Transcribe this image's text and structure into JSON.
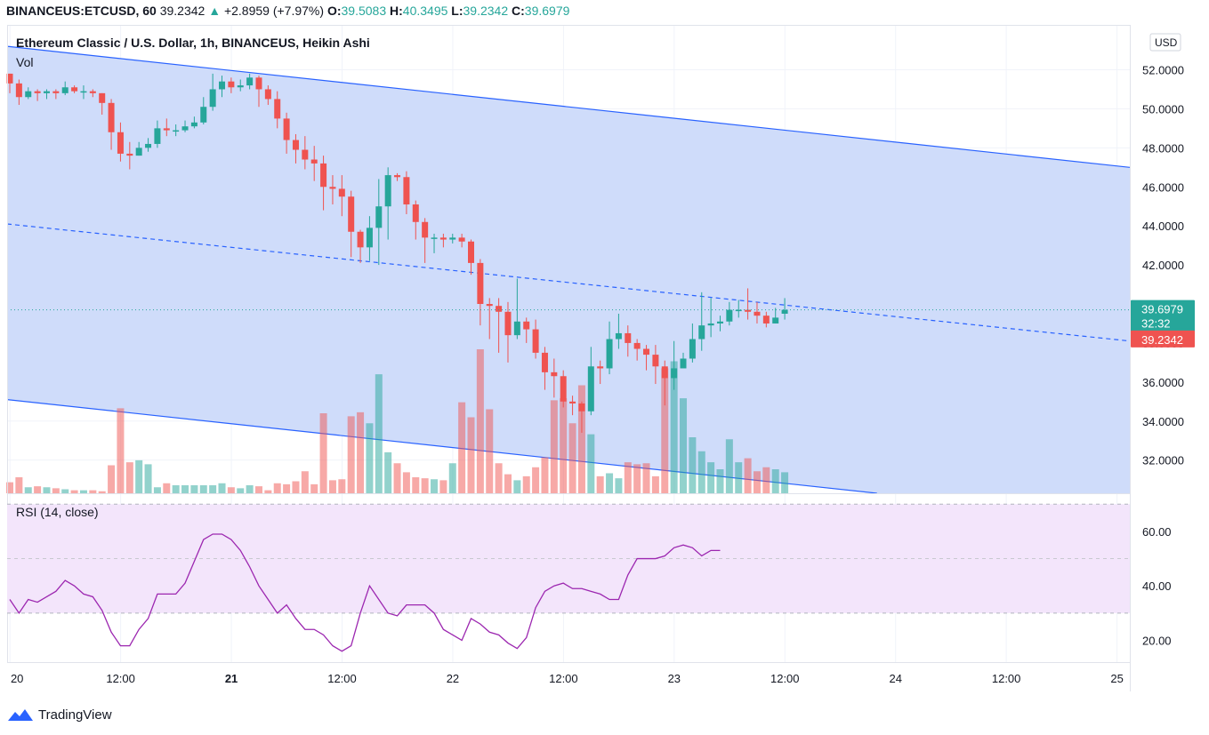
{
  "header": {
    "symbol": "BINANCEUS:ETCUSD, 60",
    "last": "39.2342",
    "change": "+2.8959 (+7.97%)",
    "o_label": "O:",
    "o": "39.5083",
    "h_label": "H:",
    "h": "40.3495",
    "l_label": "L:",
    "l": "39.2342",
    "c_label": "C:",
    "c": "39.6979"
  },
  "legend": {
    "title": "Ethereum Classic / U.S. Dollar, 1h, BINANCEUS, Heikin Ashi",
    "vol": "Vol",
    "rsi": "RSI (14, close)"
  },
  "brand": "TradingView",
  "colors": {
    "up": "#26a69a",
    "down": "#ef5350",
    "channel_fill": "#cfdcfa",
    "channel_line": "#2962ff",
    "rsi_line": "#9c27b0",
    "rsi_band": "#f3e5fb"
  },
  "chart_data": [
    {
      "type": "candlestick",
      "title": "Ethereum Classic / U.S. Dollar, 1h, BINANCEUS, Heikin Ashi",
      "currency": "USD",
      "ylim": [
        30.3,
        54.3
      ],
      "price_ticks": [
        "52.0000",
        "50.0000",
        "48.0000",
        "46.0000",
        "44.0000",
        "42.0000",
        "40.0000",
        "38.0000",
        "36.0000",
        "34.0000",
        "32.0000"
      ],
      "x_ticks": [
        {
          "i": 0,
          "label": "20",
          "bold": false
        },
        {
          "i": 12,
          "label": "12:00",
          "bold": false
        },
        {
          "i": 24,
          "label": "21",
          "bold": true
        },
        {
          "i": 36,
          "label": "12:00",
          "bold": false
        },
        {
          "i": 48,
          "label": "22",
          "bold": false
        },
        {
          "i": 60,
          "label": "12:00",
          "bold": false
        },
        {
          "i": 72,
          "label": "23",
          "bold": false
        },
        {
          "i": 84,
          "label": "12:00",
          "bold": false
        },
        {
          "i": 96,
          "label": "24",
          "bold": false
        },
        {
          "i": 108,
          "label": "12:00",
          "bold": false
        },
        {
          "i": 120,
          "label": "25",
          "bold": false
        }
      ],
      "current_price": {
        "value": "39.6979",
        "countdown": "32:32"
      },
      "low_label": "39.2342",
      "channel": {
        "upper": [
          [
            0,
            53.2
          ],
          [
            122,
            47.0
          ]
        ],
        "middle": [
          [
            0,
            44.1
          ],
          [
            122,
            38.1
          ]
        ],
        "lower": [
          [
            0,
            35.1
          ],
          [
            94,
            30.3
          ]
        ]
      },
      "candles": [
        [
          51.8,
          51.3,
          51.8,
          50.8
        ],
        [
          51.3,
          50.6,
          51.5,
          50.2
        ],
        [
          50.6,
          50.9,
          51.1,
          50.5
        ],
        [
          50.9,
          50.8,
          51.0,
          50.4
        ],
        [
          50.8,
          50.9,
          51.0,
          50.5
        ],
        [
          50.9,
          50.8,
          51.0,
          50.5
        ],
        [
          50.8,
          51.1,
          51.4,
          50.7
        ],
        [
          51.1,
          50.9,
          51.2,
          50.8
        ],
        [
          50.9,
          50.9,
          51.2,
          50.5
        ],
        [
          50.9,
          50.8,
          51.0,
          50.6
        ],
        [
          50.8,
          50.3,
          50.8,
          49.7
        ],
        [
          50.3,
          48.8,
          50.5,
          47.9
        ],
        [
          48.8,
          47.7,
          49.3,
          47.3
        ],
        [
          47.7,
          47.6,
          48.3,
          46.9
        ],
        [
          47.6,
          48.0,
          48.3,
          47.6
        ],
        [
          48.0,
          48.2,
          48.5,
          47.8
        ],
        [
          48.2,
          49.0,
          49.4,
          48.0
        ],
        [
          49.0,
          48.9,
          49.5,
          48.6
        ],
        [
          48.9,
          48.9,
          49.2,
          48.6
        ],
        [
          48.9,
          49.1,
          49.4,
          48.8
        ],
        [
          49.1,
          49.3,
          49.6,
          49.0
        ],
        [
          49.3,
          50.1,
          50.6,
          49.2
        ],
        [
          50.1,
          51.0,
          51.8,
          49.9
        ],
        [
          51.0,
          51.4,
          51.7,
          50.6
        ],
        [
          51.4,
          51.1,
          51.6,
          50.8
        ],
        [
          51.1,
          51.2,
          51.5,
          50.9
        ],
        [
          51.2,
          51.6,
          51.8,
          51.0
        ],
        [
          51.6,
          51.0,
          51.7,
          50.1
        ],
        [
          51.0,
          50.5,
          51.2,
          50.2
        ],
        [
          50.5,
          49.5,
          50.9,
          49.0
        ],
        [
          49.5,
          48.4,
          49.8,
          47.7
        ],
        [
          48.4,
          47.9,
          48.7,
          47.2
        ],
        [
          47.9,
          47.4,
          48.6,
          46.9
        ],
        [
          47.4,
          47.2,
          48.1,
          46.3
        ],
        [
          47.2,
          46.0,
          47.6,
          44.8
        ],
        [
          46.0,
          45.9,
          46.6,
          45.1
        ],
        [
          45.9,
          45.5,
          46.6,
          44.5
        ],
        [
          45.5,
          43.7,
          45.8,
          42.4
        ],
        [
          43.7,
          42.9,
          43.8,
          42.1
        ],
        [
          42.9,
          43.9,
          44.5,
          42.2
        ],
        [
          43.9,
          45.0,
          46.4,
          42.0
        ],
        [
          45.0,
          46.6,
          47.0,
          43.3
        ],
        [
          46.6,
          46.5,
          46.7,
          46.3
        ],
        [
          46.5,
          45.1,
          46.8,
          44.6
        ],
        [
          45.1,
          44.2,
          45.3,
          43.3
        ],
        [
          44.2,
          43.4,
          44.4,
          42.1
        ],
        [
          43.4,
          43.4,
          43.6,
          42.6
        ],
        [
          43.4,
          43.3,
          43.6,
          42.9
        ],
        [
          43.3,
          43.4,
          43.6,
          43.1
        ],
        [
          43.4,
          43.2,
          43.6,
          42.9
        ],
        [
          43.2,
          42.1,
          43.3,
          41.5
        ],
        [
          42.1,
          40.0,
          42.3,
          38.9
        ],
        [
          40.0,
          39.9,
          40.3,
          38.2
        ],
        [
          39.9,
          39.6,
          40.3,
          37.5
        ],
        [
          39.6,
          38.4,
          40.1,
          37.0
        ],
        [
          38.4,
          39.1,
          41.3,
          38.2
        ],
        [
          39.1,
          38.7,
          39.3,
          38.0
        ],
        [
          38.7,
          37.5,
          39.2,
          37.2
        ],
        [
          37.5,
          36.5,
          37.8,
          35.6
        ],
        [
          36.5,
          36.3,
          37.2,
          35.2
        ],
        [
          36.3,
          35.0,
          36.6,
          34.7
        ],
        [
          35.0,
          34.9,
          35.3,
          34.3
        ],
        [
          34.9,
          34.5,
          35.0,
          33.4
        ],
        [
          34.5,
          36.8,
          37.8,
          34.3
        ],
        [
          36.8,
          36.7,
          37.1,
          35.9
        ],
        [
          36.7,
          38.2,
          39.1,
          36.4
        ],
        [
          38.2,
          38.5,
          39.5,
          37.7
        ],
        [
          38.5,
          38.0,
          38.9,
          37.3
        ],
        [
          38.0,
          37.7,
          38.2,
          37.1
        ],
        [
          37.7,
          37.4,
          37.9,
          36.6
        ],
        [
          37.4,
          36.8,
          37.9,
          35.9
        ],
        [
          36.8,
          36.2,
          37.1,
          34.8
        ],
        [
          36.2,
          36.7,
          38.1,
          35.6
        ],
        [
          36.7,
          37.2,
          37.5,
          37.0
        ],
        [
          37.2,
          38.2,
          39.0,
          37.0
        ],
        [
          38.2,
          38.9,
          40.6,
          37.6
        ],
        [
          38.9,
          39.0,
          40.3,
          38.3
        ],
        [
          39.0,
          39.1,
          39.4,
          38.6
        ],
        [
          39.1,
          39.7,
          40.1,
          38.9
        ],
        [
          39.7,
          39.7,
          40.2,
          39.3
        ],
        [
          39.7,
          39.6,
          40.8,
          39.2
        ],
        [
          39.6,
          39.4,
          40.1,
          39.0
        ],
        [
          39.4,
          39.0,
          39.6,
          38.8
        ],
        [
          39.0,
          39.3,
          39.8,
          39.0
        ],
        [
          39.5,
          39.7,
          40.3,
          39.2
        ]
      ],
      "volume": {
        "ymax": 12,
        "values": [
          1.1,
          1.6,
          0.6,
          0.7,
          0.6,
          0.5,
          0.4,
          0.3,
          0.3,
          0.3,
          0.2,
          2.8,
          8.5,
          3.1,
          3.3,
          2.9,
          0.6,
          1.0,
          0.8,
          0.8,
          0.8,
          0.8,
          0.8,
          1.0,
          0.6,
          0.5,
          0.8,
          0.7,
          0.3,
          1.0,
          0.9,
          1.2,
          2.2,
          0.9,
          8.0,
          1.3,
          1.4,
          7.7,
          8.1,
          7.0,
          11.9,
          4.1,
          3.0,
          2.1,
          1.6,
          1.5,
          1.4,
          1.3,
          3.0,
          9.1,
          7.6,
          14.4,
          8.4,
          3.0,
          1.9,
          1.3,
          1.7,
          2.6,
          3.6,
          9.3,
          9.5,
          7.0,
          10.8,
          5.9,
          1.7,
          2.0,
          1.5,
          3.1,
          2.9,
          3.0,
          1.7,
          12.5,
          13.2,
          9.5,
          5.6,
          4.2,
          3.1,
          2.4,
          5.4,
          3.1,
          3.5,
          2.2,
          2.6,
          2.4,
          2.1
        ]
      }
    },
    {
      "type": "line",
      "title": "RSI (14, close)",
      "ylim": [
        12,
        74
      ],
      "y_ticks": [
        "60.00",
        "40.00",
        "20.00"
      ],
      "band": [
        30,
        70
      ],
      "values": [
        35,
        30,
        35,
        34,
        36,
        38,
        42,
        40,
        37,
        36,
        31,
        23,
        18,
        18,
        24,
        28,
        37,
        37,
        37,
        41,
        49,
        57,
        59,
        59,
        57,
        53,
        47,
        40,
        35,
        30,
        33,
        28,
        24,
        24,
        22,
        18,
        16,
        18,
        30,
        40,
        35,
        30,
        29,
        33,
        33,
        33,
        30,
        24,
        22,
        20,
        28,
        26,
        23,
        22,
        19,
        17,
        21,
        32,
        38,
        40,
        41,
        39,
        39,
        38,
        37,
        35,
        35,
        44,
        50,
        50,
        50,
        51,
        54,
        55,
        54,
        51,
        53,
        53
      ]
    }
  ]
}
